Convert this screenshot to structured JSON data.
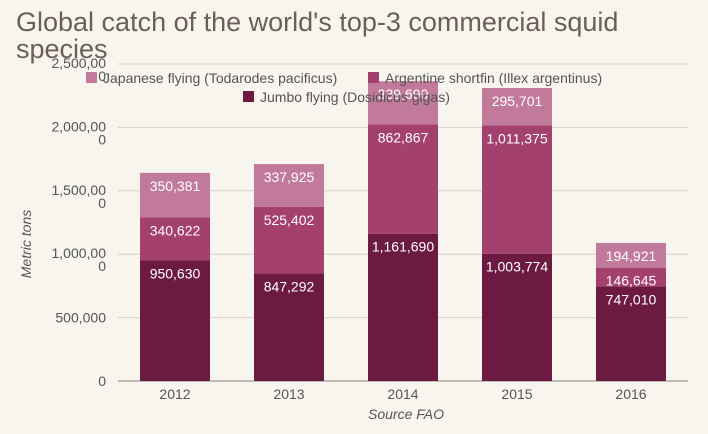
{
  "chart_data": {
    "type": "bar",
    "stacked": true,
    "title": "Global catch of the world's top-3 commercial squid species",
    "xlabel": "Source FAO",
    "ylabel": "Metric tons",
    "categories": [
      "2012",
      "2013",
      "2014",
      "2015",
      "2016"
    ],
    "ylim": [
      0,
      2500000
    ],
    "yticks": [
      {
        "value": 0,
        "label": "0"
      },
      {
        "value": 500000,
        "label": "500,000"
      },
      {
        "value": 1000000,
        "label": "1,000,00\n0"
      },
      {
        "value": 1500000,
        "label": "1,500,00\n0"
      },
      {
        "value": 2000000,
        "label": "2,000,00\n0"
      },
      {
        "value": 2500000,
        "label": "2,500,00\n0"
      }
    ],
    "grid": true,
    "legend_position": "top",
    "series": [
      {
        "name": "Jumbo flying (Dosidicus gigas)",
        "color": "#6d1a43",
        "values": [
          950630,
          847292,
          1161690,
          1003774,
          747010
        ],
        "labels": [
          "950,630",
          "847,292",
          "1,161,690",
          "1,003,774",
          "747,010"
        ]
      },
      {
        "name": "Argentine shortfin (Illex argentinus)",
        "color": "#a4406e",
        "values": [
          340622,
          525402,
          862867,
          1011375,
          146645
        ],
        "labels": [
          "340,622",
          "525,402",
          "862,867",
          "1,011,375",
          "146,645"
        ]
      },
      {
        "name": "Japanese flying (Todarodes pacificus)",
        "color": "#c27a9c",
        "values": [
          350381,
          337925,
          339690,
          295701,
          194921
        ],
        "labels": [
          "350,381",
          "337,925",
          "339,690",
          "295,701",
          "194,921"
        ]
      }
    ]
  }
}
